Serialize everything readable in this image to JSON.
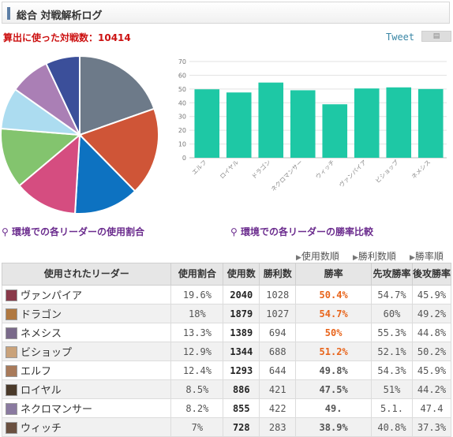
{
  "header": {
    "title": "総合 対戦解析ログ"
  },
  "match_count": "算出に使った対戦数：10414",
  "tweet": {
    "label": "Tweet"
  },
  "captions": {
    "pie": "環境での各リーダーの使用割合",
    "bar": "環境での各リーダーの勝率比較"
  },
  "sort_links": [
    "使用数順",
    "勝利数順",
    "勝率順"
  ],
  "table": {
    "headers": [
      "使用されたリーダー",
      "使用割合",
      "使用数",
      "勝利数",
      "勝率",
      "先攻勝率",
      "後攻勝率"
    ],
    "rows": [
      {
        "name": "ヴァンパイア",
        "share": "19.6%",
        "uses": "2040",
        "wins": "1028",
        "rate": "50.4%",
        "first": "54.7%",
        "second": "45.9%",
        "color": "#8a3a4a"
      },
      {
        "name": "ドラゴン",
        "share": "18%",
        "uses": "1879",
        "wins": "1027",
        "rate": "54.7%",
        "first": "60%",
        "second": "49.2%",
        "color": "#b07840"
      },
      {
        "name": "ネメシス",
        "share": "13.3%",
        "uses": "1389",
        "wins": "694",
        "rate": "50%",
        "first": "55.3%",
        "second": "44.8%",
        "color": "#7a6a8a"
      },
      {
        "name": "ビショップ",
        "share": "12.9%",
        "uses": "1344",
        "wins": "688",
        "rate": "51.2%",
        "first": "52.1%",
        "second": "50.2%",
        "color": "#c9a27a"
      },
      {
        "name": "エルフ",
        "share": "12.4%",
        "uses": "1293",
        "wins": "644",
        "rate": "49.8%",
        "first": "54.3%",
        "second": "45.9%",
        "color": "#a87a5a"
      },
      {
        "name": "ロイヤル",
        "share": "8.5%",
        "uses": "886",
        "wins": "421",
        "rate": "47.5%",
        "first": "51%",
        "second": "44.2%",
        "color": "#4a3a2a"
      },
      {
        "name": "ネクロマンサー",
        "share": "8.2%",
        "uses": "855",
        "wins": "422",
        "rate": "49.",
        "first": "5.1.",
        "second": "47.4",
        "color": "#8a7aa0"
      },
      {
        "name": "ウィッチ",
        "share": "7%",
        "uses": "728",
        "wins": "283",
        "rate": "38.9%",
        "first": "40.8%",
        "second": "37.3%",
        "color": "#6a5040"
      }
    ]
  },
  "chart_data": [
    {
      "type": "pie",
      "slices": [
        {
          "label": "ヴァンパイア",
          "value": 19.6,
          "color": "#6d7a89"
        },
        {
          "label": "ドラゴン",
          "value": 18.0,
          "color": "#cf5537"
        },
        {
          "label": "ネメシス",
          "value": 13.3,
          "color": "#0d72c1"
        },
        {
          "label": "ビショップ",
          "value": 12.9,
          "color": "#d54d80"
        },
        {
          "label": "エルフ",
          "value": 12.4,
          "color": "#83c46e"
        },
        {
          "label": "ロイヤル",
          "value": 8.5,
          "color": "#acdcf0"
        },
        {
          "label": "ネクロマンサー",
          "value": 8.2,
          "color": "#aa7fb5"
        },
        {
          "label": "ウィッチ",
          "value": 7.0,
          "color": "#3b4f9a"
        }
      ]
    },
    {
      "type": "bar",
      "categories": [
        "エルフ",
        "ロイヤル",
        "ドラゴン",
        "ネクロマンサー",
        "ウィッチ",
        "ヴァンパイア",
        "ビショップ",
        "ネメシス"
      ],
      "values": [
        49.8,
        47.5,
        54.7,
        49.1,
        38.9,
        50.4,
        51.2,
        50.0
      ],
      "ylim": [
        0,
        70
      ],
      "yticks": [
        0,
        10,
        20,
        30,
        40,
        50,
        60,
        70
      ],
      "grid": true,
      "color": "#1ec8a5"
    }
  ]
}
